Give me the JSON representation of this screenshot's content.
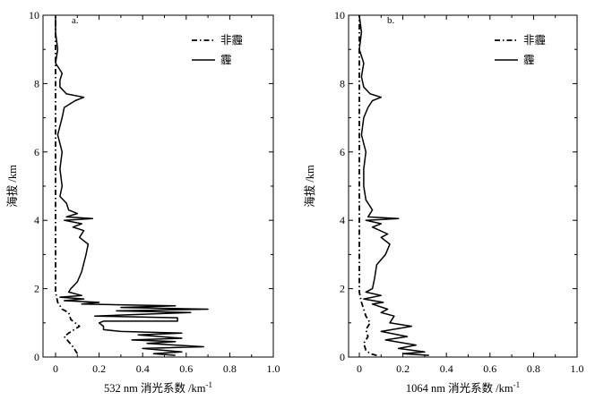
{
  "chart_data": [
    {
      "type": "line",
      "panel": "a.",
      "xlabel": "532 nm 消光系数 /km",
      "xlabel_sup": "-1",
      "ylabel": "海拔 /km",
      "xlim": [
        0,
        1.0
      ],
      "ylim": [
        0,
        10
      ],
      "x_ticks": [
        "0",
        "0.2",
        "0.4",
        "0.6",
        "0.8",
        "1.0"
      ],
      "y_ticks": [
        "0",
        "2",
        "4",
        "6",
        "8",
        "10"
      ],
      "legend_position": "top-right",
      "series": [
        {
          "name": "非霾",
          "style": "dash-dot",
          "points": [
            [
              0.1,
              0.1
            ],
            [
              0.08,
              0.3
            ],
            [
              0.04,
              0.6
            ],
            [
              0.06,
              0.7
            ],
            [
              0.11,
              0.9
            ],
            [
              0.07,
              1.1
            ],
            [
              0.06,
              1.3
            ],
            [
              0.03,
              1.4
            ],
            [
              0.02,
              1.5
            ],
            [
              0.01,
              1.6
            ],
            [
              0.0,
              1.9
            ],
            [
              0.0,
              2.5
            ],
            [
              0.0,
              3.0
            ],
            [
              0.0,
              4.0
            ],
            [
              0.0,
              5.0
            ],
            [
              0.0,
              6.0
            ],
            [
              0.0,
              7.0
            ],
            [
              0.0,
              8.0
            ],
            [
              0.0,
              9.0
            ],
            [
              0.0,
              10.0
            ]
          ]
        },
        {
          "name": "霾",
          "style": "solid",
          "points": [
            [
              0.55,
              0.05
            ],
            [
              0.45,
              0.1
            ],
            [
              0.58,
              0.15
            ],
            [
              0.4,
              0.25
            ],
            [
              0.68,
              0.3
            ],
            [
              0.42,
              0.4
            ],
            [
              0.55,
              0.45
            ],
            [
              0.35,
              0.5
            ],
            [
              0.58,
              0.55
            ],
            [
              0.38,
              0.65
            ],
            [
              0.58,
              0.7
            ],
            [
              0.3,
              0.75
            ],
            [
              0.22,
              0.8
            ],
            [
              0.22,
              0.9
            ],
            [
              0.2,
              1.0
            ],
            [
              0.22,
              1.05
            ],
            [
              0.56,
              1.05
            ],
            [
              0.56,
              1.15
            ],
            [
              0.18,
              1.2
            ],
            [
              0.62,
              1.3
            ],
            [
              0.28,
              1.35
            ],
            [
              0.7,
              1.4
            ],
            [
              0.3,
              1.45
            ],
            [
              0.55,
              1.5
            ],
            [
              0.12,
              1.55
            ],
            [
              0.2,
              1.6
            ],
            [
              0.04,
              1.65
            ],
            [
              0.13,
              1.7
            ],
            [
              0.02,
              1.75
            ],
            [
              0.12,
              1.8
            ],
            [
              0.06,
              1.9
            ],
            [
              0.07,
              2.0
            ],
            [
              0.1,
              2.2
            ],
            [
              0.12,
              2.5
            ],
            [
              0.14,
              3.0
            ],
            [
              0.15,
              3.3
            ],
            [
              0.11,
              3.5
            ],
            [
              0.13,
              3.7
            ],
            [
              0.08,
              3.8
            ],
            [
              0.12,
              3.9
            ],
            [
              0.04,
              4.0
            ],
            [
              0.17,
              4.05
            ],
            [
              0.05,
              4.1
            ],
            [
              0.1,
              4.2
            ],
            [
              0.06,
              4.3
            ],
            [
              0.05,
              4.5
            ],
            [
              0.02,
              4.7
            ],
            [
              0.03,
              5.0
            ],
            [
              0.02,
              5.5
            ],
            [
              0.03,
              6.0
            ],
            [
              0.01,
              6.5
            ],
            [
              0.03,
              7.0
            ],
            [
              0.04,
              7.3
            ],
            [
              0.09,
              7.5
            ],
            [
              0.13,
              7.6
            ],
            [
              0.05,
              7.7
            ],
            [
              0.02,
              7.9
            ],
            [
              0.02,
              8.1
            ],
            [
              0.03,
              8.3
            ],
            [
              0.0,
              8.6
            ],
            [
              0.01,
              9.0
            ],
            [
              0.0,
              9.5
            ],
            [
              0.0,
              10.0
            ]
          ]
        }
      ]
    },
    {
      "type": "line",
      "panel": "b.",
      "xlabel": "1064 nm 消光系数 /km",
      "xlabel_sup": "-1",
      "ylabel": "海拔 /km",
      "xlim": [
        0,
        1.0
      ],
      "ylim": [
        0,
        10
      ],
      "x_ticks": [
        "0",
        "0.2",
        "0.4",
        "0.6",
        "0.8",
        "1.0"
      ],
      "y_ticks": [
        "0",
        "2",
        "4",
        "6",
        "8",
        "10"
      ],
      "legend_position": "top-right",
      "series": [
        {
          "name": "非霾",
          "style": "dash-dot",
          "points": [
            [
              0.08,
              0.05
            ],
            [
              0.05,
              0.1
            ],
            [
              0.03,
              0.2
            ],
            [
              0.02,
              0.4
            ],
            [
              0.04,
              0.6
            ],
            [
              0.03,
              0.8
            ],
            [
              0.05,
              1.0
            ],
            [
              0.03,
              1.2
            ],
            [
              0.02,
              1.4
            ],
            [
              0.01,
              1.6
            ],
            [
              0.0,
              1.9
            ],
            [
              0.0,
              2.5
            ],
            [
              0.0,
              3.0
            ],
            [
              0.0,
              4.0
            ],
            [
              0.0,
              5.0
            ],
            [
              0.0,
              6.0
            ],
            [
              0.0,
              7.0
            ],
            [
              0.0,
              8.0
            ],
            [
              0.0,
              9.0
            ],
            [
              0.0,
              10.0
            ]
          ]
        },
        {
          "name": "霾",
          "style": "solid",
          "points": [
            [
              0.32,
              0.05
            ],
            [
              0.2,
              0.1
            ],
            [
              0.3,
              0.15
            ],
            [
              0.18,
              0.25
            ],
            [
              0.26,
              0.35
            ],
            [
              0.12,
              0.5
            ],
            [
              0.22,
              0.6
            ],
            [
              0.1,
              0.75
            ],
            [
              0.24,
              0.9
            ],
            [
              0.14,
              1.0
            ],
            [
              0.16,
              1.2
            ],
            [
              0.1,
              1.3
            ],
            [
              0.13,
              1.4
            ],
            [
              0.06,
              1.55
            ],
            [
              0.11,
              1.6
            ],
            [
              0.02,
              1.7
            ],
            [
              0.1,
              1.8
            ],
            [
              0.03,
              1.9
            ],
            [
              0.06,
              2.0
            ],
            [
              0.07,
              2.3
            ],
            [
              0.08,
              2.7
            ],
            [
              0.12,
              3.0
            ],
            [
              0.14,
              3.3
            ],
            [
              0.1,
              3.5
            ],
            [
              0.13,
              3.6
            ],
            [
              0.06,
              3.8
            ],
            [
              0.1,
              3.9
            ],
            [
              0.03,
              4.0
            ],
            [
              0.18,
              4.05
            ],
            [
              0.04,
              4.1
            ],
            [
              0.06,
              4.3
            ],
            [
              0.03,
              4.6
            ],
            [
              0.02,
              5.0
            ],
            [
              0.02,
              5.5
            ],
            [
              0.03,
              6.0
            ],
            [
              0.01,
              6.5
            ],
            [
              0.02,
              7.0
            ],
            [
              0.04,
              7.3
            ],
            [
              0.06,
              7.5
            ],
            [
              0.1,
              7.6
            ],
            [
              0.05,
              7.7
            ],
            [
              0.02,
              7.9
            ],
            [
              0.01,
              8.2
            ],
            [
              0.02,
              8.6
            ],
            [
              0.0,
              9.0
            ],
            [
              0.01,
              9.5
            ],
            [
              0.0,
              10.0
            ]
          ]
        }
      ]
    }
  ]
}
